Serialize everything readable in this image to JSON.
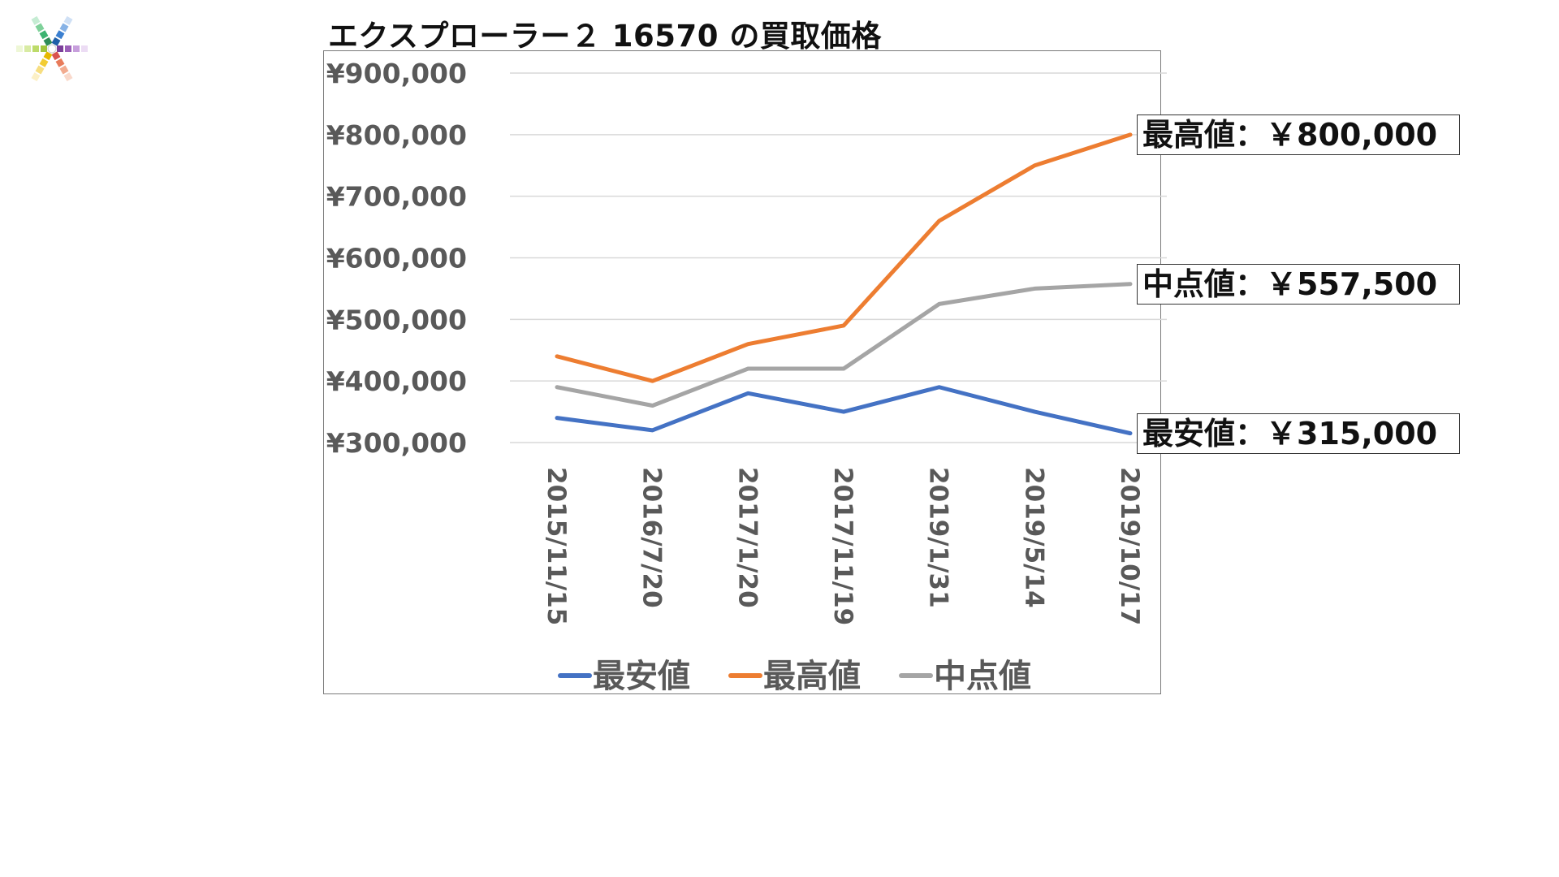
{
  "title": "エクスプローラー２ 16570 の買取価格",
  "logo": {
    "icon": "color-burst-logo"
  },
  "chart_data": {
    "type": "line",
    "title": "エクスプローラー２ 16570 の買取価格",
    "xlabel": "",
    "ylabel": "",
    "categories": [
      "2015/11/15",
      "2016/7/20",
      "2017/1/20",
      "2017/11/19",
      "2019/1/31",
      "2019/5/14",
      "2019/10/17"
    ],
    "ylim": [
      300000,
      900000
    ],
    "yticks": [
      300000,
      400000,
      500000,
      600000,
      700000,
      800000,
      900000
    ],
    "ytick_labels": [
      "¥300,000",
      "¥400,000",
      "¥500,000",
      "¥600,000",
      "¥700,000",
      "¥800,000",
      "¥900,000"
    ],
    "grid": true,
    "legend_position": "bottom",
    "series": [
      {
        "name": "最安値",
        "color": "#4472C4",
        "values": [
          340000,
          320000,
          380000,
          350000,
          390000,
          350000,
          315000
        ]
      },
      {
        "name": "最高値",
        "color": "#ED7D31",
        "values": [
          440000,
          400000,
          460000,
          490000,
          660000,
          750000,
          800000
        ]
      },
      {
        "name": "中点値",
        "color": "#A5A5A5",
        "values": [
          390000,
          360000,
          420000,
          420000,
          525000,
          550000,
          557500
        ]
      }
    ],
    "annotations": [
      {
        "series": "最高値",
        "text": "最高値：￥800,000"
      },
      {
        "series": "中点値",
        "text": "中点値：￥557,500"
      },
      {
        "series": "最安値",
        "text": "最安値：￥315,000"
      }
    ]
  }
}
